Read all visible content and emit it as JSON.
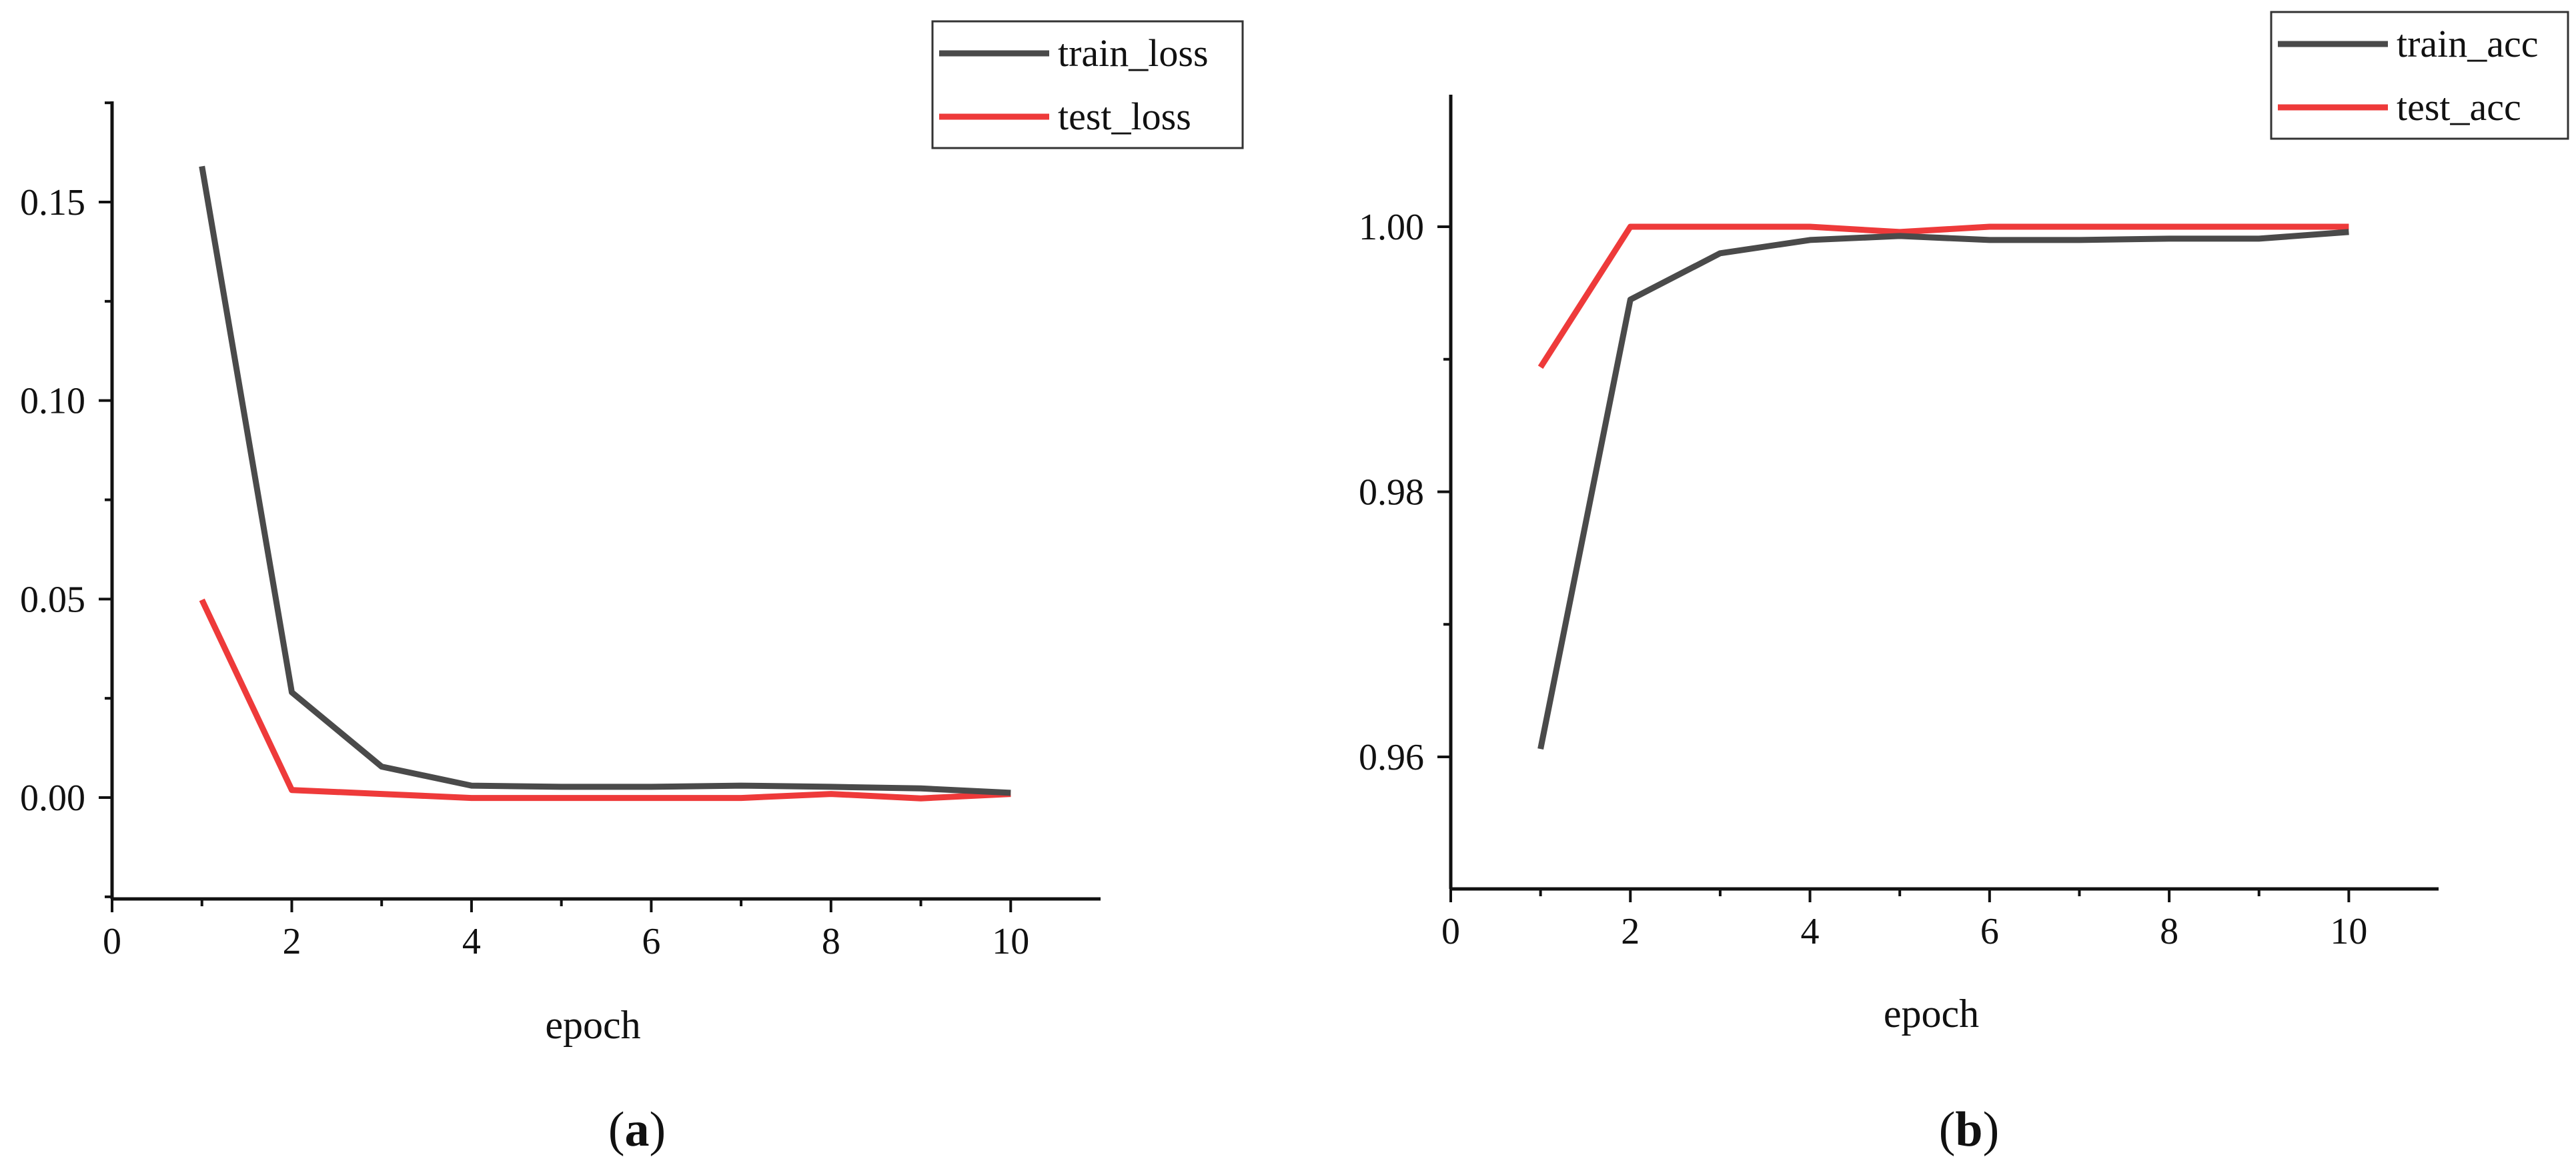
{
  "colors": {
    "train": "#4a4a4a",
    "test": "#ee3a3a",
    "axis": "#111111"
  },
  "chart_data": [
    {
      "type": "line",
      "caption": "a",
      "xlabel": "epoch",
      "ylabel": "",
      "xlim": [
        0,
        11
      ],
      "ylim": [
        -0.025,
        0.175
      ],
      "xticks": [
        0,
        2,
        4,
        6,
        8,
        10
      ],
      "xtick_labels": [
        "0",
        "2",
        "4",
        "6",
        "8",
        "10"
      ],
      "yticks": [
        0.0,
        0.05,
        0.1,
        0.15
      ],
      "ytick_labels": [
        "0.00",
        "0.05",
        "0.10",
        "0.15"
      ],
      "legend_position": "top-right",
      "grid": false,
      "x": [
        1,
        2,
        3,
        4,
        5,
        6,
        7,
        8,
        9,
        10
      ],
      "series": [
        {
          "name": "train_loss",
          "color": "#4a4a4a",
          "values": [
            0.159,
            0.0265,
            0.0078,
            0.003,
            0.0027,
            0.0027,
            0.003,
            0.0027,
            0.0023,
            0.0012
          ]
        },
        {
          "name": "test_loss",
          "color": "#ee3a3a",
          "values": [
            0.0498,
            0.0019,
            0.0009,
            -0.0001,
            -0.0001,
            -0.0001,
            -0.0001,
            0.0009,
            -0.0002,
            0.0009
          ]
        }
      ]
    },
    {
      "type": "line",
      "caption": "b",
      "xlabel": "epoch",
      "ylabel": "",
      "xlim": [
        0,
        11
      ],
      "ylim": [
        0.95,
        1.01
      ],
      "xticks": [
        0,
        2,
        4,
        6,
        8,
        10
      ],
      "xtick_labels": [
        "0",
        "2",
        "4",
        "6",
        "8",
        "10"
      ],
      "yticks": [
        0.96,
        0.98,
        1.0
      ],
      "ytick_labels": [
        "0.96",
        "0.98",
        "1.00"
      ],
      "legend_position": "top-right",
      "grid": false,
      "x": [
        1,
        2,
        3,
        4,
        5,
        6,
        7,
        8,
        9,
        10
      ],
      "series": [
        {
          "name": "train_acc",
          "color": "#4a4a4a",
          "values": [
            0.9606,
            0.9945,
            0.998,
            0.999,
            0.9993,
            0.999,
            0.999,
            0.9991,
            0.9991,
            0.9996
          ]
        },
        {
          "name": "test_acc",
          "color": "#ee3a3a",
          "values": [
            0.9894,
            1.0,
            1.0,
            1.0,
            0.9996,
            1.0,
            1.0,
            1.0,
            1.0,
            1.0
          ]
        }
      ]
    }
  ]
}
